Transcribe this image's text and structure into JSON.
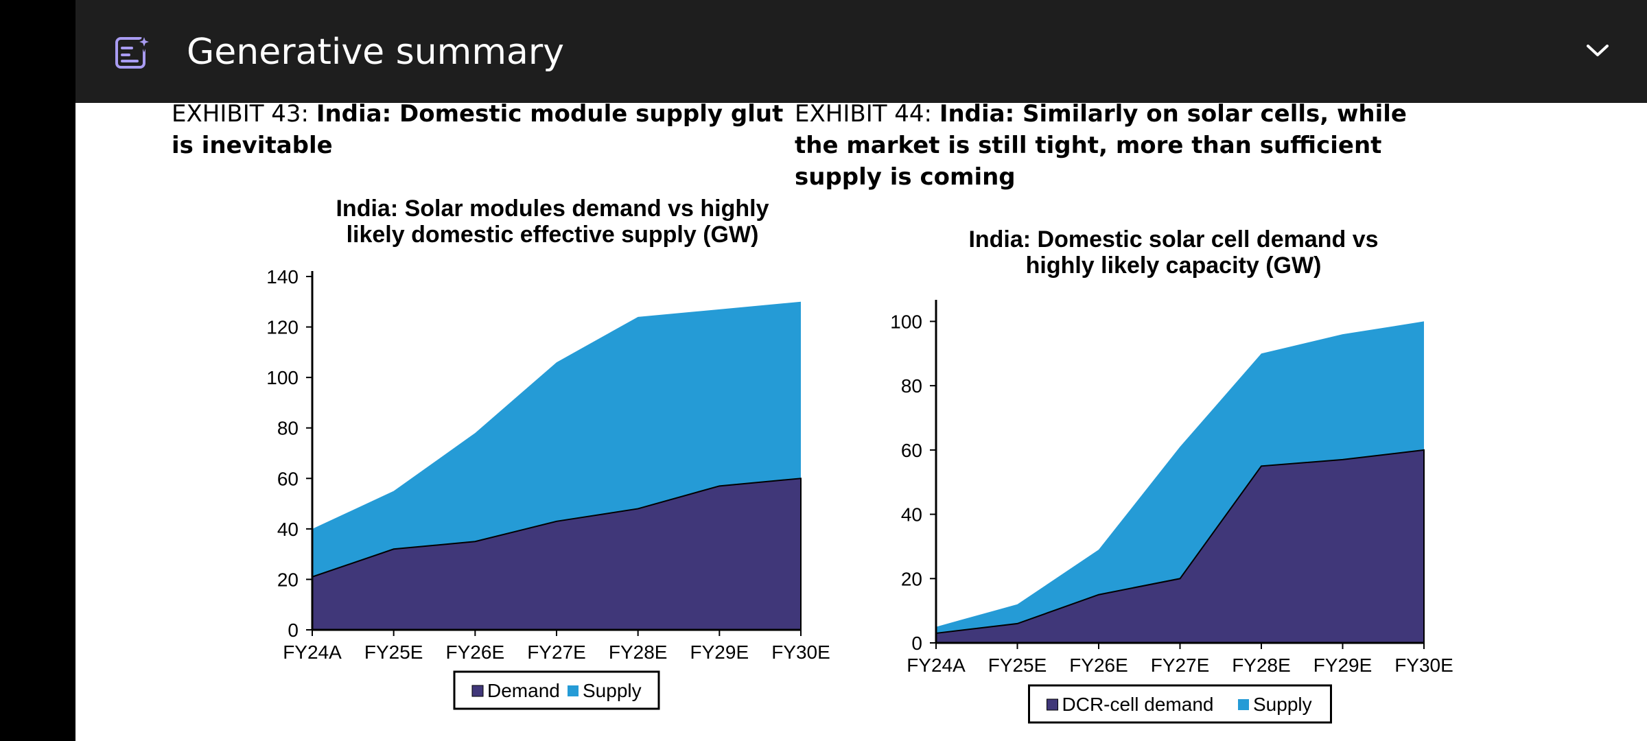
{
  "header": {
    "title": "Generative summary",
    "icon": "ai-summary-icon",
    "collapse_icon": "chevron-down-icon"
  },
  "exhibits": [
    {
      "number": "EXHIBIT 43:",
      "title": "India: Domestic module supply glut is inevitable"
    },
    {
      "number": "EXHIBIT 44:",
      "title": "India: Similarly on solar cells, while the market is still tight, more than sufficient supply is coming"
    }
  ],
  "colors": {
    "demand": "#403779",
    "supply": "#259bd6"
  },
  "chart_data": [
    {
      "type": "area",
      "title": [
        "India: Solar modules demand vs highly",
        "likely domestic effective supply (GW)"
      ],
      "categories": [
        "FY24A",
        "FY25E",
        "FY26E",
        "FY27E",
        "FY28E",
        "FY29E",
        "FY30E"
      ],
      "ylim": [
        0,
        140
      ],
      "yticks": [
        0,
        20,
        40,
        60,
        80,
        100,
        120,
        140
      ],
      "series": [
        {
          "name": "Demand",
          "values": [
            21,
            32,
            35,
            43,
            48,
            57,
            60
          ]
        },
        {
          "name": "Supply",
          "values": [
            40,
            55,
            78,
            106,
            124,
            127,
            130
          ]
        }
      ],
      "legend": "bottom-center",
      "grid": false
    },
    {
      "type": "area",
      "title": [
        "India: Domestic solar cell demand vs",
        "highly likely capacity (GW)"
      ],
      "categories": [
        "FY24A",
        "FY25E",
        "FY26E",
        "FY27E",
        "FY28E",
        "FY29E",
        "FY30E"
      ],
      "ylim": [
        0,
        105
      ],
      "yticks": [
        0,
        20,
        40,
        60,
        80,
        100
      ],
      "series": [
        {
          "name": "DCR-cell demand",
          "values": [
            3,
            6,
            15,
            20,
            55,
            57,
            60
          ]
        },
        {
          "name": "Supply",
          "values": [
            5,
            12,
            29,
            61,
            90,
            96,
            100
          ]
        }
      ],
      "legend": "bottom-center",
      "grid": false
    }
  ]
}
